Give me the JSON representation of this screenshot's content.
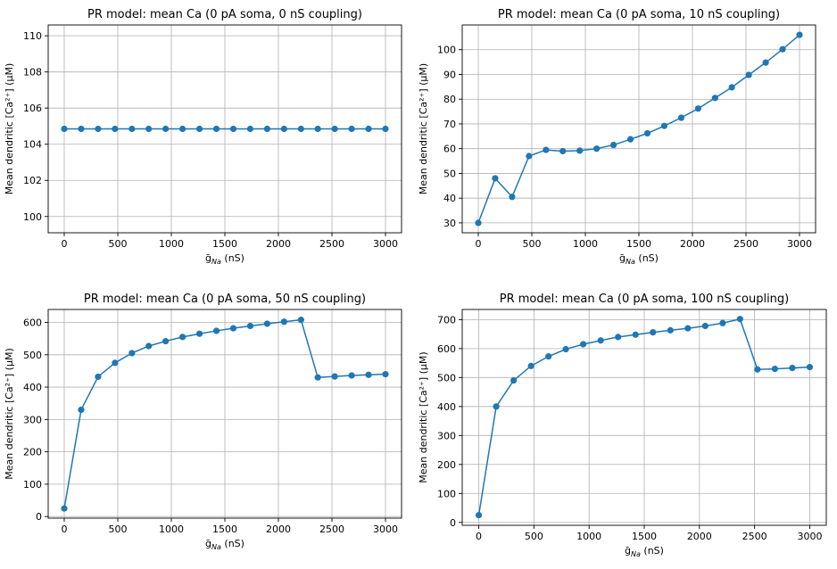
{
  "chart_data": [
    {
      "type": "line",
      "title": "PR model: mean Ca (0 pA soma, 0 nS coupling)",
      "xlabel": "ḡ_Na (nS)",
      "ylabel": "Mean dendritic [Ca²⁺] (μM)",
      "grid": true,
      "xlim": [
        -150,
        3150
      ],
      "ylim": [
        99.1,
        110.6
      ],
      "xticks": [
        0,
        500,
        1000,
        1500,
        2000,
        2500,
        3000
      ],
      "yticks": [
        100,
        102,
        104,
        106,
        108,
        110
      ],
      "x": [
        0,
        158,
        316,
        474,
        632,
        789,
        947,
        1105,
        1263,
        1421,
        1579,
        1737,
        1895,
        2053,
        2211,
        2368,
        2526,
        2684,
        2842,
        3000
      ],
      "series": [
        {
          "name": "mean Ca",
          "values": [
            104.85,
            104.85,
            104.85,
            104.85,
            104.85,
            104.85,
            104.85,
            104.85,
            104.85,
            104.85,
            104.85,
            104.85,
            104.85,
            104.85,
            104.85,
            104.85,
            104.85,
            104.85,
            104.85,
            104.85
          ]
        }
      ]
    },
    {
      "type": "line",
      "title": "PR model: mean Ca (0 pA soma, 10 nS coupling)",
      "xlabel": "ḡ_Na (nS)",
      "ylabel": "Mean dendritic [Ca²⁺] (μM)",
      "grid": true,
      "xlim": [
        -150,
        3150
      ],
      "ylim": [
        26,
        110
      ],
      "xticks": [
        0,
        500,
        1000,
        1500,
        2000,
        2500,
        3000
      ],
      "yticks": [
        30,
        40,
        50,
        60,
        70,
        80,
        90,
        100
      ],
      "x": [
        0,
        158,
        316,
        474,
        632,
        789,
        947,
        1105,
        1263,
        1421,
        1579,
        1737,
        1895,
        2053,
        2211,
        2368,
        2526,
        2684,
        2842,
        3000
      ],
      "series": [
        {
          "name": "mean Ca",
          "values": [
            30,
            48,
            40.5,
            57,
            59.5,
            59,
            59.2,
            60,
            61.5,
            63.8,
            66.2,
            69.2,
            72.5,
            76.2,
            80.5,
            84.8,
            89.8,
            94.8,
            100.2,
            106
          ]
        }
      ]
    },
    {
      "type": "line",
      "title": "PR model: mean Ca (0 pA soma, 50 nS coupling)",
      "xlabel": "ḡ_Na (nS)",
      "ylabel": "Mean dendritic [Ca²⁺] (μM)",
      "grid": true,
      "xlim": [
        -150,
        3150
      ],
      "ylim": [
        -5,
        640
      ],
      "xticks": [
        0,
        500,
        1000,
        1500,
        2000,
        2500,
        3000
      ],
      "yticks": [
        0,
        100,
        200,
        300,
        400,
        500,
        600
      ],
      "x": [
        0,
        158,
        316,
        474,
        632,
        789,
        947,
        1105,
        1263,
        1421,
        1579,
        1737,
        1895,
        2053,
        2211,
        2368,
        2526,
        2684,
        2842,
        3000
      ],
      "series": [
        {
          "name": "mean Ca",
          "values": [
            25,
            330,
            432,
            475,
            505,
            527,
            542,
            555,
            565,
            574,
            582,
            589,
            596,
            602,
            608,
            430,
            433,
            436,
            438,
            440
          ]
        }
      ]
    },
    {
      "type": "line",
      "title": "PR model: mean Ca (0 pA soma, 100 nS coupling)",
      "xlabel": "ḡ_Na (nS)",
      "ylabel": "Mean dendritic [Ca²⁺] (μM)",
      "grid": true,
      "xlim": [
        -150,
        3150
      ],
      "ylim": [
        -10,
        735
      ],
      "xticks": [
        0,
        500,
        1000,
        1500,
        2000,
        2500,
        3000
      ],
      "yticks": [
        0,
        100,
        200,
        300,
        400,
        500,
        600,
        700
      ],
      "x": [
        0,
        158,
        316,
        474,
        632,
        789,
        947,
        1105,
        1263,
        1421,
        1579,
        1737,
        1895,
        2053,
        2211,
        2368,
        2526,
        2684,
        2842,
        3000
      ],
      "series": [
        {
          "name": "mean Ca",
          "values": [
            25,
            400,
            490,
            540,
            573,
            598,
            615,
            628,
            640,
            648,
            656,
            663,
            670,
            678,
            688,
            702,
            528,
            530,
            533,
            536
          ]
        }
      ]
    }
  ]
}
